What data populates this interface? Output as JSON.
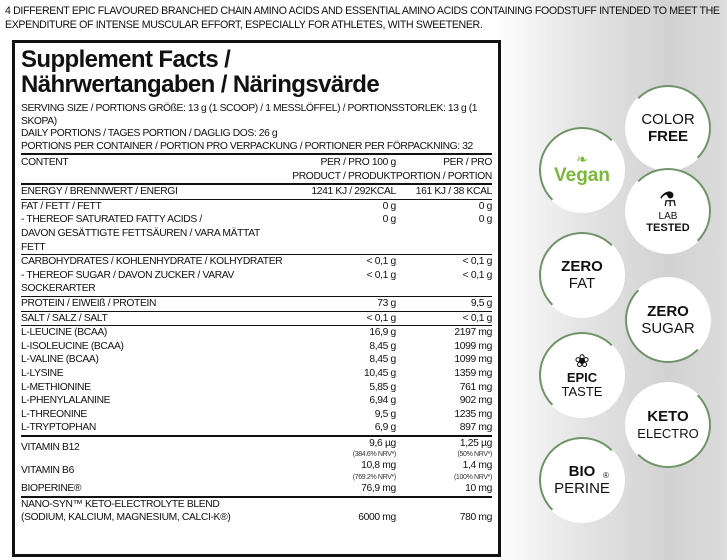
{
  "intro": "4 DIFFERENT EPIC FLAVOURED BRANCHED CHAIN AMINO ACIDS AND ESSENTIAL AMINO ACIDS CONTAINING FOODSTUFF INTENDED TO MEET THE EXPENDITURE OF INTENSE MUSCULAR EFFORT, ESPECIALLY FOR ATHLETES, WITH SWEETENER.",
  "title_line1": "Supplement Facts /",
  "title_line2": "Nährwertangaben / Näringsvärde",
  "serving": [
    "SERVING SIZE / PORTIONS GRÖßE: 13 g (1 SCOOP) / 1 MESSLÖFFEL) / PORTIONSSTORLEK: 13 g (1 SKOPA)",
    "DAILY PORTIONS / TAGES PORTION / DAGLIG DOS: 26 g",
    "PORTIONS PER CONTAINER / PORTION PRO VERPACKUNG / PORTIONER PER FÖRPACKNING: 32"
  ],
  "header": {
    "content": "CONTENT",
    "col2a": "PER / PRO 100 g",
    "col2b": "PRODUCT / PRODUKT",
    "col3a": "PER / PRO",
    "col3b": "PORTION / PORTION"
  },
  "rows": [
    {
      "label": "ENERGY / BRENNWERT / ENERGI",
      "v100": "1241 KJ / 292KCAL",
      "vp": "161 KJ / 38 KCAL"
    },
    {
      "label": "FAT / FETT / FETT",
      "v100": "0 g",
      "vp": "0 g"
    },
    {
      "label": "- THEREOF SATURATED FATTY ACIDS /",
      "label2": "DAVON GESÄTTIGTE FETTSÄUREN / VARA MÄTTAT FETT",
      "v100": "0 g",
      "vp": "0 g"
    },
    {
      "label": "CARBOHYDRATES / KOHLENHYDRATE / KOLHYDRATER",
      "v100": "< 0,1  g",
      "vp": "< 0,1 g"
    },
    {
      "label": "- THEREOF SUGAR / DAVON ZUCKER / VARAV SOCKERARTER",
      "v100": "< 0,1 g",
      "vp": "< 0,1 g"
    },
    {
      "label": "PROTEIN / EIWEIß / PROTEIN",
      "v100": "73 g",
      "vp": "9,5 g"
    },
    {
      "label": "SALT / SALZ / SALT",
      "v100": "< 0,1 g",
      "vp": "< 0,1 g"
    },
    {
      "label": "L-LEUCINE (BCAA)",
      "v100": "16,9 g",
      "vp": "2197 mg"
    },
    {
      "label": "L-ISOLEUCINE (BCAA)",
      "v100": "8,45 g",
      "vp": "1099 mg"
    },
    {
      "label": "L-VALINE (BCAA)",
      "v100": "8,45 g",
      "vp": "1099 mg"
    },
    {
      "label": "L-LYSINE",
      "v100": "10,45 g",
      "vp": "1359 mg"
    },
    {
      "label": "L-METHIONINE",
      "v100": "5,85 g",
      "vp": "761 mg"
    },
    {
      "label": "L-PHENYLALANINE",
      "v100": "6,94 g",
      "vp": "902 mg"
    },
    {
      "label": "L-THREONINE",
      "v100": "9,5 g",
      "vp": "1235 mg"
    },
    {
      "label": "L-TRYPTOPHAN",
      "v100": "6,9 g",
      "vp": "897 mg"
    },
    {
      "label": "VITAMIN B12",
      "v100": "9,6 µg",
      "n100": "(384.6% NRV*)",
      "vp": "1,25 µg",
      "np": "(50% NRV*)"
    },
    {
      "label": "VITAMIN B6",
      "v100": "10,8 mg",
      "n100": "(769.2% NRV*)",
      "vp": "1,4 mg",
      "np": "(100% NRV*)"
    },
    {
      "label": "BIOPERINE®",
      "v100": "76,9 mg",
      "vp": "10 mg"
    },
    {
      "label": "NANO-SYN™ KETO-ELECTROLYTE BLEND",
      "label2": "(SODIUM, KALCIUM, MAGNESIUM, CALCI-K®)",
      "v100": "6000 mg",
      "vp": "780 mg"
    }
  ],
  "badges": {
    "color": [
      "COLOR",
      "FREE"
    ],
    "vegan": "Vegan",
    "lab": [
      "LAB",
      "TESTED"
    ],
    "zerofat": [
      "ZERO",
      "FAT"
    ],
    "zerosugar": [
      "ZERO",
      "SUGAR"
    ],
    "epic": [
      "EPIC",
      "TASTE"
    ],
    "keto": [
      "KETO",
      "ELECTRO"
    ],
    "bio": [
      "BIO",
      "PERINE",
      "®"
    ]
  },
  "colors": {
    "badge_ring": "#6f9467",
    "vegan_green": "#7bb83a"
  }
}
